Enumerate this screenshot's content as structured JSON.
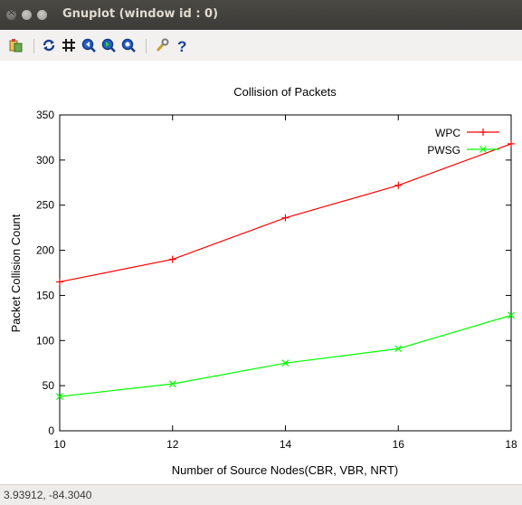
{
  "window": {
    "title": "Gnuplot (window id : 0)"
  },
  "toolbar": {
    "buttons": [
      {
        "name": "copy-to-clipboard-icon",
        "glyph": "⎘"
      },
      {
        "name": "replot-icon",
        "glyph": "↻"
      },
      {
        "name": "grid-icon",
        "glyph": "#"
      },
      {
        "name": "previous-zoom-icon",
        "glyph": "◀"
      },
      {
        "name": "next-zoom-icon",
        "glyph": "▶"
      },
      {
        "name": "autoscale-icon",
        "glyph": "Q"
      },
      {
        "name": "settings-icon",
        "glyph": "🔧"
      },
      {
        "name": "help-icon",
        "glyph": "?"
      }
    ]
  },
  "status": {
    "coordinates": "3.93912, -84.3040"
  },
  "colors": {
    "wpc": "#ff0000",
    "pwsg": "#00ff00",
    "titlebar": "#3c3b37"
  },
  "chart_data": {
    "type": "line",
    "title": "Collision of Packets",
    "xlabel": "Number of Source Nodes(CBR, VBR, NRT)",
    "ylabel": "Packet Collision Count",
    "x": [
      10,
      12,
      14,
      16,
      18
    ],
    "xlim": [
      10,
      18
    ],
    "ylim": [
      0,
      350
    ],
    "x_ticks": [
      "10",
      "12",
      "14",
      "16",
      "18"
    ],
    "y_ticks": [
      "0",
      "50",
      "100",
      "150",
      "200",
      "250",
      "300",
      "350"
    ],
    "legend_position": "top-right",
    "grid": false,
    "series": [
      {
        "name": "WPC",
        "marker": "+",
        "color": "#ff0000",
        "values": [
          165,
          190,
          236,
          272,
          318
        ]
      },
      {
        "name": "PWSG",
        "marker": "x",
        "color": "#00ff00",
        "values": [
          38,
          52,
          75,
          91,
          128
        ]
      }
    ]
  }
}
